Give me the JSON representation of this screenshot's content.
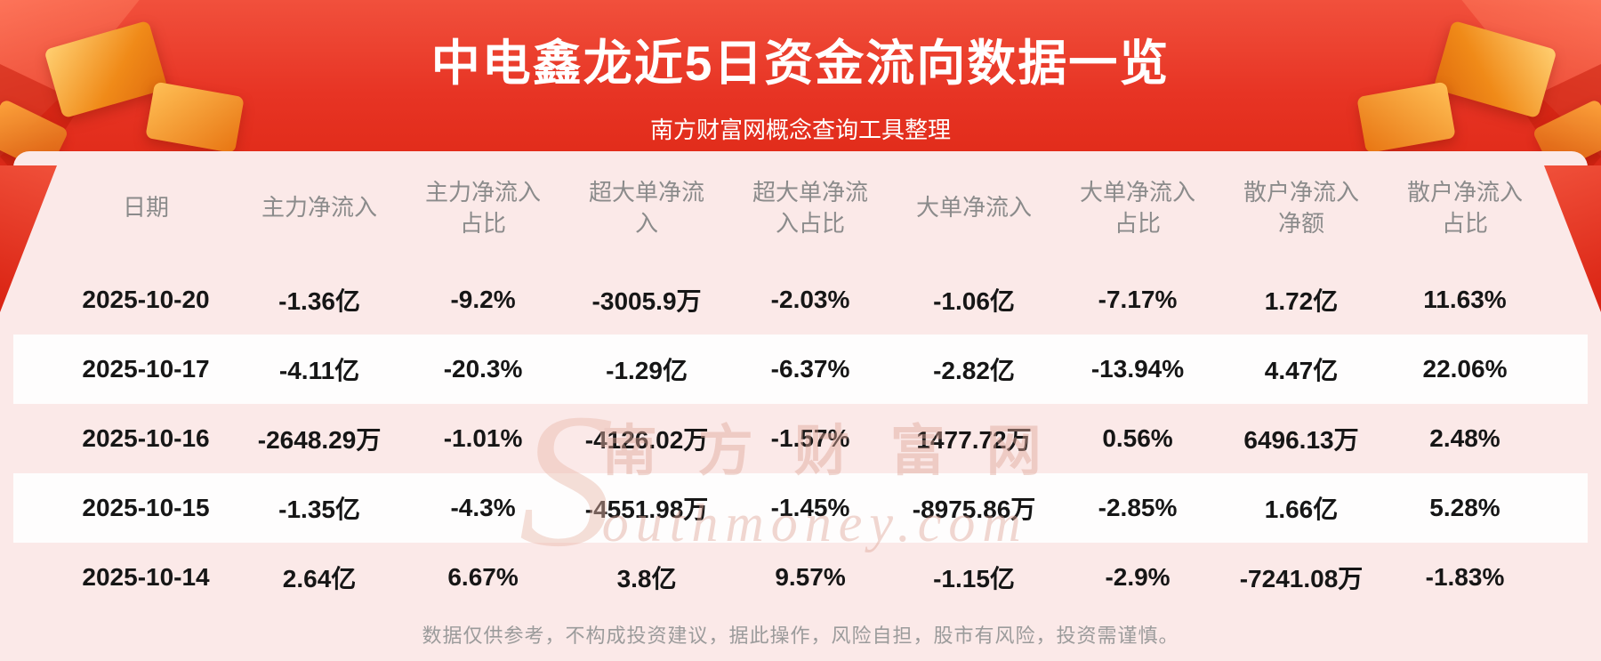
{
  "banner": {
    "title": "中电鑫龙近5日资金流向数据一览",
    "subtitle": "南方财富网概念查询工具整理"
  },
  "chart_data": {
    "type": "table",
    "title": "中电鑫龙近5日资金流向数据一览",
    "source_note": "南方财富网概念查询工具整理",
    "columns": [
      "日期",
      "主力净流入",
      "主力净流入占比",
      "超大单净流入",
      "超大单净流入占比",
      "大单净流入",
      "大单净流入占比",
      "散户净流入净额",
      "散户净流入占比"
    ],
    "rows": [
      [
        "2025-10-20",
        "-1.36亿",
        "-9.2%",
        "-3005.9万",
        "-2.03%",
        "-1.06亿",
        "-7.17%",
        "1.72亿",
        "11.63%"
      ],
      [
        "2025-10-17",
        "-4.11亿",
        "-20.3%",
        "-1.29亿",
        "-6.37%",
        "-2.82亿",
        "-13.94%",
        "4.47亿",
        "22.06%"
      ],
      [
        "2025-10-16",
        "-2648.29万",
        "-1.01%",
        "-4126.02万",
        "-1.57%",
        "1477.72万",
        "0.56%",
        "6496.13万",
        "2.48%"
      ],
      [
        "2025-10-15",
        "-1.35亿",
        "-4.3%",
        "-4551.98万",
        "-1.45%",
        "-8975.86万",
        "-2.85%",
        "1.66亿",
        "5.28%"
      ],
      [
        "2025-10-14",
        "2.64亿",
        "6.67%",
        "3.8亿",
        "9.57%",
        "-1.15亿",
        "-2.9%",
        "-7241.08万",
        "-1.83%"
      ]
    ]
  },
  "watermark": {
    "initial": "S",
    "cn": "南方财富网",
    "en": "outhmoney.com"
  },
  "footer": {
    "disclaimer": "数据仅供参考，不构成投资建议，据此操作，风险自担，股市有风险，投资需谨慎。"
  },
  "colors": {
    "banner_red": "#e73424",
    "panel_pink": "#fbe9e8",
    "row_white": "#fefdfd",
    "gift_gold": "#f08a18",
    "header_text": "#8b8b8b",
    "cell_text": "#161616",
    "disclaimer_text": "#9b9b9b"
  }
}
